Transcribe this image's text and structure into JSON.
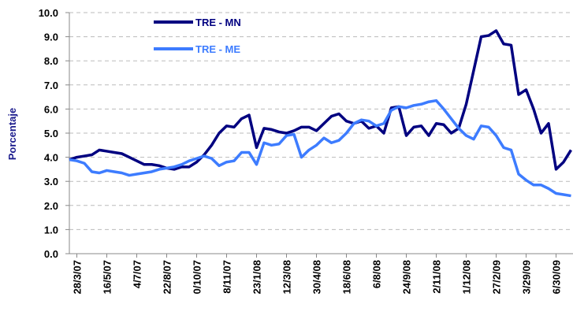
{
  "chart_data": {
    "type": "line",
    "y_label": "Porcentaje",
    "categories": [
      null,
      "28/3/07",
      null,
      null,
      null,
      "16/5/07",
      null,
      null,
      null,
      "4/7/07",
      null,
      null,
      null,
      "22/8/07",
      null,
      null,
      null,
      "0/10/07",
      null,
      null,
      null,
      "8/11/07",
      null,
      null,
      null,
      "23/1/08",
      null,
      null,
      null,
      "12/3/08",
      null,
      null,
      null,
      "30/4/08",
      null,
      null,
      null,
      "18/6/08",
      null,
      null,
      null,
      "6/8/08",
      null,
      null,
      null,
      "24/9/08",
      null,
      null,
      null,
      "2/11/08",
      null,
      null,
      null,
      "1/12/08",
      null,
      null,
      null,
      "27/2/09",
      null,
      null,
      null,
      "3/29/09",
      null,
      null,
      null,
      "6/30/09",
      null,
      null
    ],
    "series": [
      {
        "name": "TRE - MN",
        "color": "#000080",
        "values": [
          3.9,
          4.0,
          4.05,
          4.1,
          4.3,
          4.25,
          4.2,
          4.15,
          4.0,
          3.85,
          3.7,
          3.7,
          3.65,
          3.55,
          3.5,
          3.6,
          3.6,
          3.8,
          4.1,
          4.5,
          5.0,
          5.3,
          5.25,
          5.6,
          5.75,
          4.4,
          5.2,
          5.15,
          5.05,
          5.0,
          5.1,
          5.25,
          5.25,
          5.1,
          5.4,
          5.7,
          5.8,
          5.5,
          5.4,
          5.5,
          5.2,
          5.3,
          5.0,
          6.05,
          6.1,
          4.9,
          5.25,
          5.3,
          4.9,
          5.4,
          5.35,
          5.0,
          5.2,
          6.2,
          7.6,
          9.0,
          9.05,
          9.25,
          8.7,
          8.65,
          6.6,
          6.8,
          6.0,
          5.0,
          5.4,
          3.5,
          3.8,
          4.3
        ]
      },
      {
        "name": "TRE - ME",
        "color": "#3d7cff",
        "values": [
          3.9,
          3.85,
          3.75,
          3.4,
          3.35,
          3.45,
          3.4,
          3.35,
          3.25,
          3.3,
          3.35,
          3.4,
          3.5,
          3.55,
          3.6,
          3.7,
          3.85,
          3.95,
          4.05,
          3.95,
          3.65,
          3.8,
          3.85,
          4.2,
          4.2,
          3.7,
          4.6,
          4.5,
          4.55,
          4.9,
          4.95,
          4.0,
          4.3,
          4.5,
          4.8,
          4.6,
          4.7,
          5.0,
          5.4,
          5.55,
          5.5,
          5.3,
          5.4,
          5.95,
          6.1,
          6.05,
          6.15,
          6.2,
          6.3,
          6.35,
          6.0,
          5.6,
          5.2,
          4.9,
          4.75,
          5.3,
          5.25,
          4.9,
          4.4,
          4.3,
          3.3,
          3.05,
          2.85,
          2.85,
          2.7,
          2.5,
          2.45,
          2.4
        ]
      }
    ],
    "ylim": [
      0,
      10
    ],
    "yticks": [
      {
        "value": 0,
        "label": "0.0"
      },
      {
        "value": 1,
        "label": "1.0"
      },
      {
        "value": 2,
        "label": "2.0"
      },
      {
        "value": 3,
        "label": "3.0"
      },
      {
        "value": 4,
        "label": "4.0"
      },
      {
        "value": 5,
        "label": "5.0"
      },
      {
        "value": 6,
        "label": "6.0"
      },
      {
        "value": 7,
        "label": "7.0"
      },
      {
        "value": 8,
        "label": "8.0"
      },
      {
        "value": 9,
        "label": "9.0"
      },
      {
        "value": 10,
        "label": "10.0"
      }
    ],
    "grid": true,
    "legend": "top"
  }
}
